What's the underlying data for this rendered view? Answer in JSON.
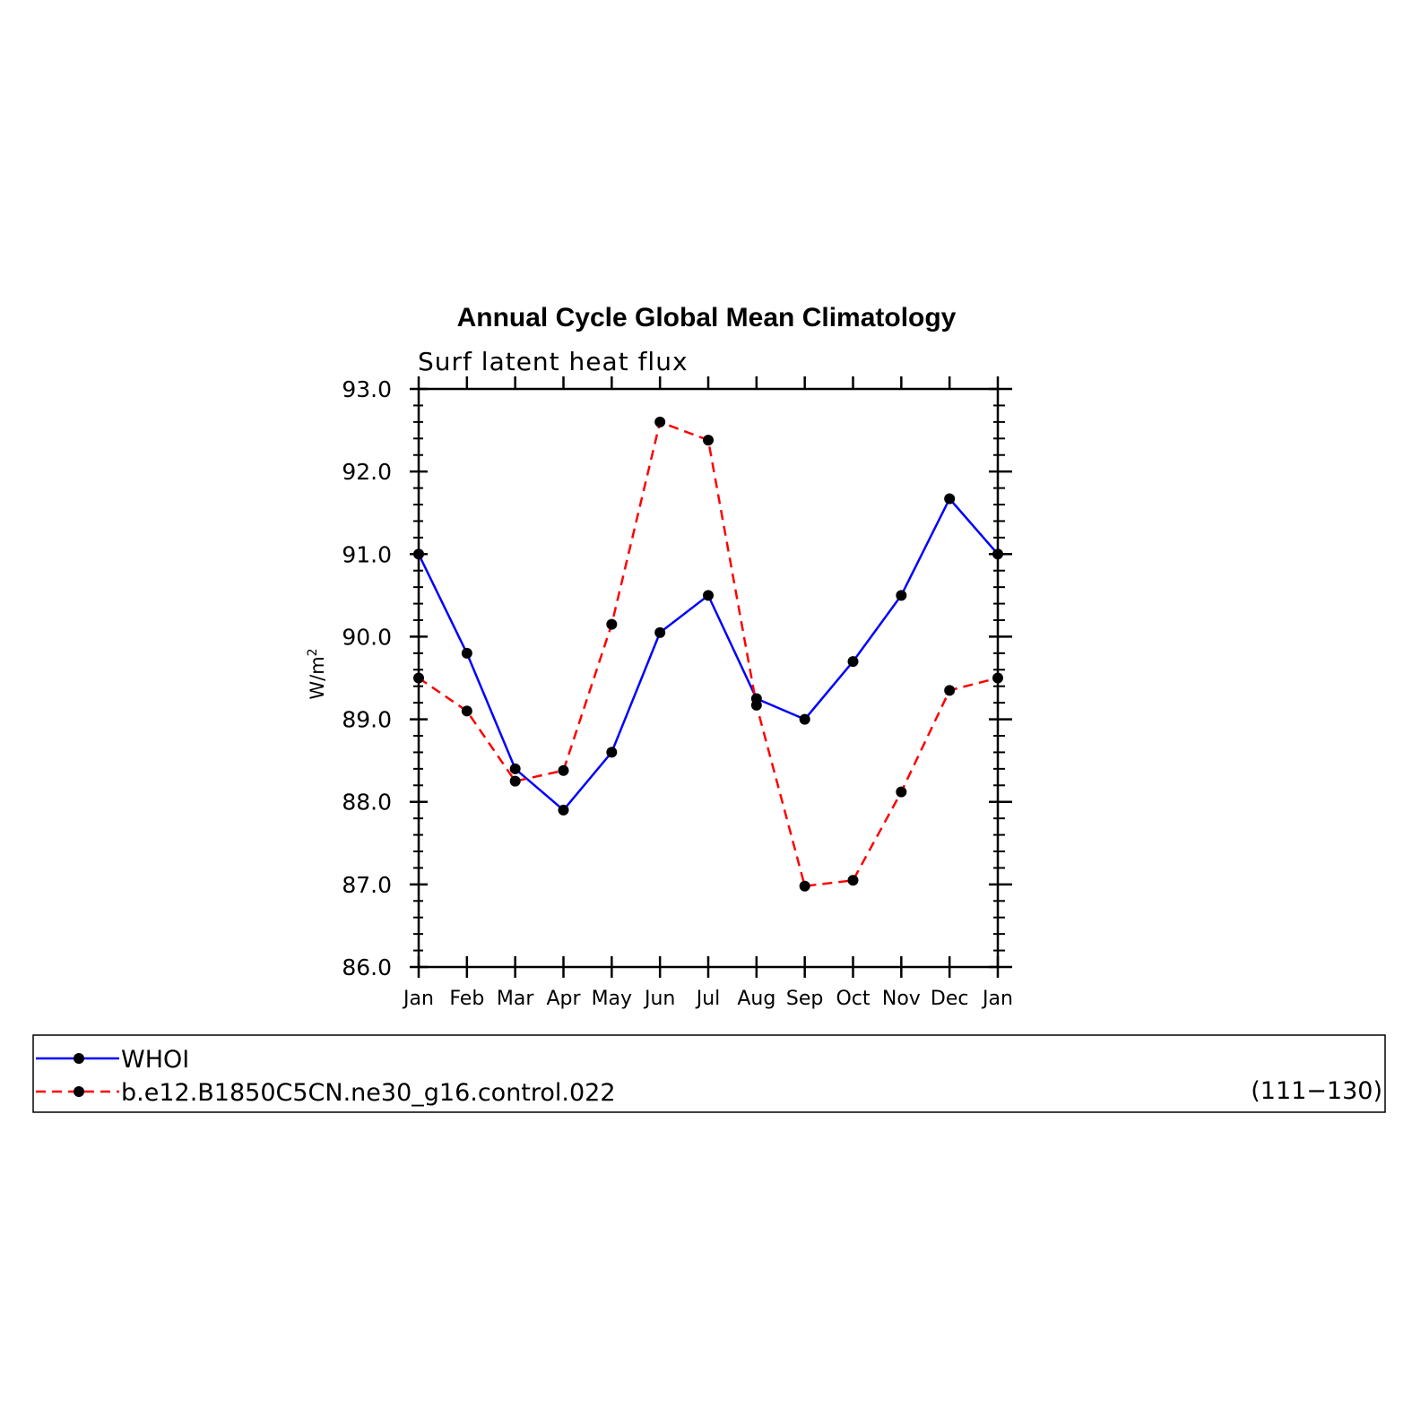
{
  "chart_data": {
    "type": "line",
    "title": "Annual Cycle Global Mean Climatology",
    "subtitle": "Surf latent heat flux",
    "ylabel": "W/m",
    "ylabel_superscript": "2",
    "ylim": [
      86.0,
      93.0
    ],
    "yticks": [
      "86.0",
      "87.0",
      "88.0",
      "89.0",
      "90.0",
      "91.0",
      "92.0",
      "93.0"
    ],
    "categories": [
      "Jan",
      "Feb",
      "Mar",
      "Apr",
      "May",
      "Jun",
      "Jul",
      "Aug",
      "Sep",
      "Oct",
      "Nov",
      "Dec",
      "Jan"
    ],
    "series": [
      {
        "name": "WHOI",
        "color": "#0000ff",
        "dash": "solid",
        "marker": "filled-circle",
        "values": [
          91.0,
          89.8,
          88.4,
          87.9,
          88.6,
          90.05,
          90.5,
          89.25,
          89.0,
          89.7,
          90.5,
          91.67,
          91.0
        ]
      },
      {
        "name": "b.e12.B1850C5CN.ne30_g16.control.022",
        "color": "#ff0000",
        "dash": "dashed",
        "marker": "filled-circle",
        "values": [
          89.5,
          89.1,
          88.25,
          88.38,
          90.15,
          92.6,
          92.38,
          89.17,
          86.98,
          87.05,
          88.12,
          89.35,
          89.5
        ]
      }
    ],
    "legend": {
      "placement": "bottom",
      "period_label": "(111−130)"
    },
    "grid": false
  }
}
